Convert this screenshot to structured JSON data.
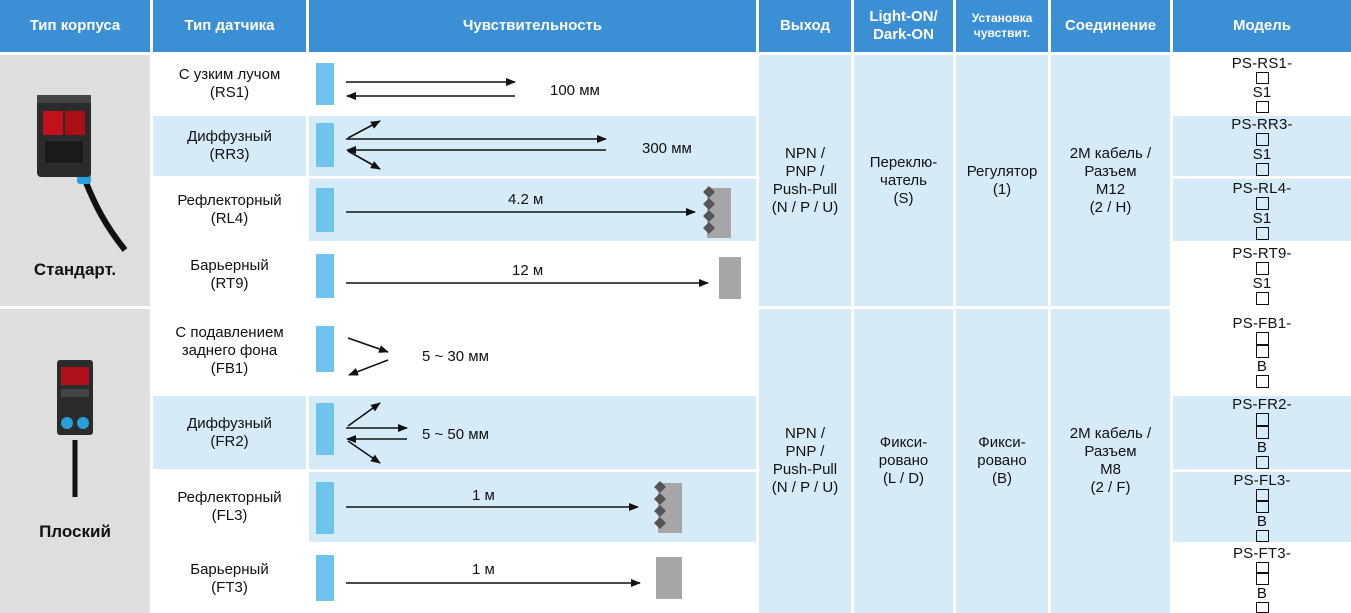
{
  "headers": {
    "housing": "Тип корпуса",
    "sensor": "Тип датчика",
    "sensitivity": "Чувствительность",
    "output": "Выход",
    "light_dark": [
      "Light-ON/",
      "Dark-ON"
    ],
    "sens_setting": [
      "Установка",
      "чувствит."
    ],
    "connection": "Соединение",
    "model": "Модель"
  },
  "groups": [
    {
      "housing": "Стандарт.",
      "output": [
        "NPN /",
        "PNP /",
        "Push-Pull",
        "(N / P / U)"
      ],
      "light_dark": [
        "Переклю-",
        "чатель",
        "(S)"
      ],
      "sens_setting": [
        "Регулятор",
        "(1)"
      ],
      "connection": [
        "2M кабель /",
        "Разъем",
        "M12",
        "(2 / H)"
      ],
      "rows": [
        {
          "sensor": [
            "С узким лучом",
            "(RS1)"
          ],
          "range": "100 мм",
          "model_prefix": "PS-RS1-",
          "model_mid": "S1"
        },
        {
          "sensor": [
            "Диффузный",
            "(RR3)"
          ],
          "range": "300 мм",
          "model_prefix": "PS-RR3-",
          "model_mid": "S1"
        },
        {
          "sensor": [
            "Рефлекторный",
            "(RL4)"
          ],
          "range": "4.2 м",
          "model_prefix": "PS-RL4-",
          "model_mid": "S1"
        },
        {
          "sensor": [
            "Барьерный",
            "(RT9)"
          ],
          "range": "12 м",
          "model_prefix": "PS-RT9-",
          "model_mid": "S1"
        }
      ]
    },
    {
      "housing": "Плоский",
      "output": [
        "NPN /",
        "PNP /",
        "Push-Pull",
        "(N / P / U)"
      ],
      "light_dark": [
        "Фикси-",
        "ровано",
        "(L / D)"
      ],
      "sens_setting": [
        "Фикси-",
        "ровано",
        "(B)"
      ],
      "connection": [
        "2M кабель /",
        "Разъем",
        "M8",
        "(2 / F)"
      ],
      "rows": [
        {
          "sensor": [
            "С подавлением",
            "заднего фона",
            "(FB1)"
          ],
          "range": "5 ~ 30 мм",
          "model_prefix": "PS-FB1-",
          "model_mid": "B"
        },
        {
          "sensor": [
            "Диффузный",
            "(FR2)"
          ],
          "range": "5 ~ 50 мм",
          "model_prefix": "PS-FR2-",
          "model_mid": "B"
        },
        {
          "sensor": [
            "Рефлекторный",
            "(FL3)"
          ],
          "range": "1 м",
          "model_prefix": "PS-FL3-",
          "model_mid": "B"
        },
        {
          "sensor": [
            "Барьерный",
            "(FT3)"
          ],
          "range": "1 м",
          "model_prefix": "PS-FT3-",
          "model_mid": "B"
        }
      ]
    }
  ],
  "colors": {
    "header_bg": "#3a8fd5",
    "row_light": "#d6ebf8",
    "emitter": "#6fc4ee",
    "target": "#a6a6a6"
  }
}
